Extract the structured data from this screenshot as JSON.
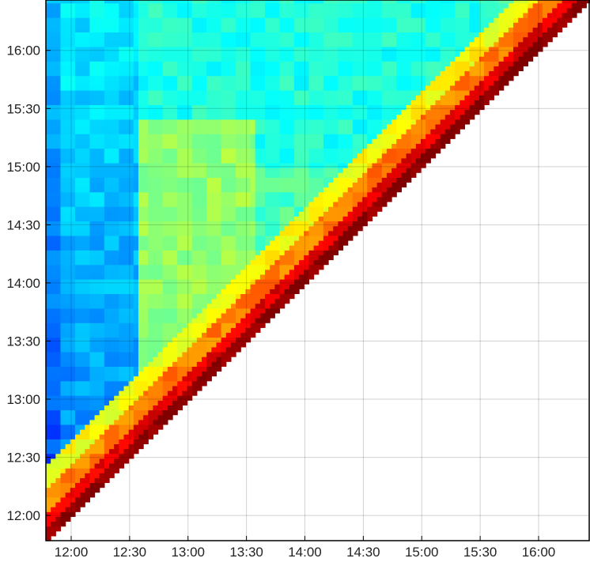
{
  "chart_data": {
    "type": "heatmap",
    "x_ticks": [
      "12:00",
      "12:30",
      "13:00",
      "13:30",
      "14:00",
      "14:30",
      "15:00",
      "15:30",
      "16:00"
    ],
    "y_ticks": [
      "12:00",
      "12:30",
      "13:00",
      "13:30",
      "14:00",
      "14:30",
      "15:00",
      "15:30",
      "16:00"
    ],
    "x_range": [
      "11:47",
      "16:26"
    ],
    "y_range": [
      "11:47",
      "16:26"
    ],
    "grid": true,
    "colormap": "jet",
    "masked_region": "lower-right triangle below the diagonal (x > y) is blank/white",
    "description_bands": [
      {
        "y_from": "11:47",
        "y_to": "16:26",
        "x_from": "11:47",
        "x_to": "12:35",
        "level": 0.3
      },
      {
        "y_from": "13:05",
        "y_to": "15:25",
        "x_from": "12:35",
        "x_to": "13:40",
        "level": 0.55
      },
      {
        "y_from": "15:00",
        "y_to": "16:26",
        "x_from": "13:30",
        "x_to": "15:30",
        "level": 0.4
      }
    ]
  },
  "colors": {
    "axis": "#000000",
    "grid": "#cccccc",
    "masked": "#ffffff"
  }
}
